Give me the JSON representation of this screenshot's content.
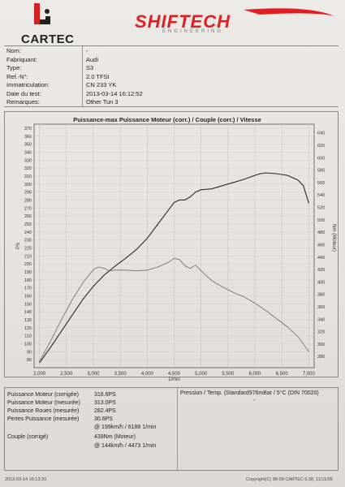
{
  "header": {
    "brand_left": "CARTEC",
    "brand_right": "SHIFTECH",
    "brand_right_sub": "ENGINEERING"
  },
  "info": [
    {
      "label": "Nom:",
      "value": "-"
    },
    {
      "label": "Fabriquant:",
      "value": "Audi"
    },
    {
      "label": "Type:",
      "value": "S3"
    },
    {
      "label": "Ref.-N°:",
      "value": "2.0 TFSI"
    },
    {
      "label": "Immatriculation:",
      "value": "CN 233 YK"
    },
    {
      "label": "Date du test:",
      "value": "2013-03-14 16:12:52"
    },
    {
      "label": "Remarques:",
      "value": "Other Tun 3"
    }
  ],
  "chart_data": {
    "type": "line",
    "title": "Puissance-max Puissance Moteur (corr.) / Couple (corr.) / Vitesse",
    "xlabel": "1/min",
    "ylabel_left": "PS",
    "ylabel_right": "Nm (Moteur)",
    "xlim": [
      1900,
      7100
    ],
    "xticks": [
      2000,
      2500,
      3000,
      3500,
      4000,
      4500,
      5000,
      5500,
      6000,
      6500,
      7000
    ],
    "xtick_labels": [
      "2,000",
      "2,500",
      "3,000",
      "3,500",
      "4,000",
      "4,500",
      "5,000",
      "5,500",
      "6,000",
      "6,500",
      "7,000"
    ],
    "ylim_left": [
      70,
      375
    ],
    "yticks_left": [
      80,
      90,
      100,
      110,
      120,
      130,
      140,
      150,
      160,
      170,
      180,
      190,
      200,
      210,
      220,
      230,
      240,
      250,
      260,
      270,
      280,
      290,
      300,
      310,
      320,
      330,
      340,
      350,
      360,
      370
    ],
    "ylim_right": [
      262,
      654
    ],
    "yticks_right": [
      280,
      300,
      320,
      340,
      360,
      380,
      400,
      420,
      440,
      460,
      480,
      500,
      520,
      540,
      560,
      580,
      600,
      620,
      640
    ],
    "grid": true,
    "series": [
      {
        "axis": "left",
        "color": "#2a2a2a",
        "x": [
          2000,
          2200,
          2400,
          2600,
          2800,
          3000,
          3200,
          3400,
          3600,
          3800,
          4000,
          4200,
          4400,
          4500,
          4600,
          4700,
          4800,
          4900,
          5000,
          5200,
          5400,
          5600,
          5800,
          6000,
          6100,
          6200,
          6400,
          6600,
          6800,
          6900,
          7000
        ],
        "y": [
          76,
          95,
          115,
          135,
          155,
          172,
          186,
          197,
          207,
          218,
          232,
          250,
          268,
          277,
          280,
          280,
          284,
          290,
          293,
          294,
          298,
          302,
          306,
          311,
          313,
          314,
          313,
          311,
          305,
          298,
          276
        ]
      },
      {
        "axis": "right",
        "color": "#6a6a6a",
        "x": [
          2000,
          2200,
          2400,
          2600,
          2800,
          3000,
          3100,
          3200,
          3300,
          3400,
          3600,
          3800,
          4000,
          4200,
          4400,
          4500,
          4600,
          4700,
          4800,
          4900,
          5000,
          5200,
          5400,
          5600,
          5800,
          6000,
          6200,
          6400,
          6600,
          6800,
          7000
        ],
        "y": [
          272,
          304,
          338,
          370,
          398,
          420,
          424,
          422,
          418,
          419,
          419,
          418,
          419,
          424,
          432,
          438,
          436,
          426,
          422,
          427,
          418,
          402,
          392,
          383,
          376,
          366,
          354,
          341,
          328,
          312,
          288
        ]
      }
    ]
  },
  "results_left": [
    {
      "label": "Puissance Moteur (corrigée)",
      "value": "316.6PS"
    },
    {
      "label": "Puissance Moteur (mesurée)",
      "value": "313.0PS"
    },
    {
      "label": "Puissance Roues (mesurée)",
      "value": "282.4PS"
    },
    {
      "label": "Pertes Puissance (mesurée)",
      "value": "30.6PS"
    },
    {
      "label": "",
      "value": "@ 199km/h / 6188 1/min"
    },
    {
      "label": "Couple (corrigé)",
      "value": "439Nm (Moteur)"
    },
    {
      "label": "",
      "value": "@ 144km/h / 4473 1/min"
    }
  ],
  "results_right": {
    "label": "Pression / Temp. (Standard976mBar / 5°C   (DIN 70020)",
    "value": "-"
  },
  "footer": {
    "left": "2013-03-14 16:13:20",
    "right": "Copyright(C) 98-09 CARTEC 6.38, 11/11/09"
  },
  "colors": {
    "brand_red": "#e02020",
    "power_line": "#2a2a2a",
    "torque_line": "#6a6a6a"
  }
}
